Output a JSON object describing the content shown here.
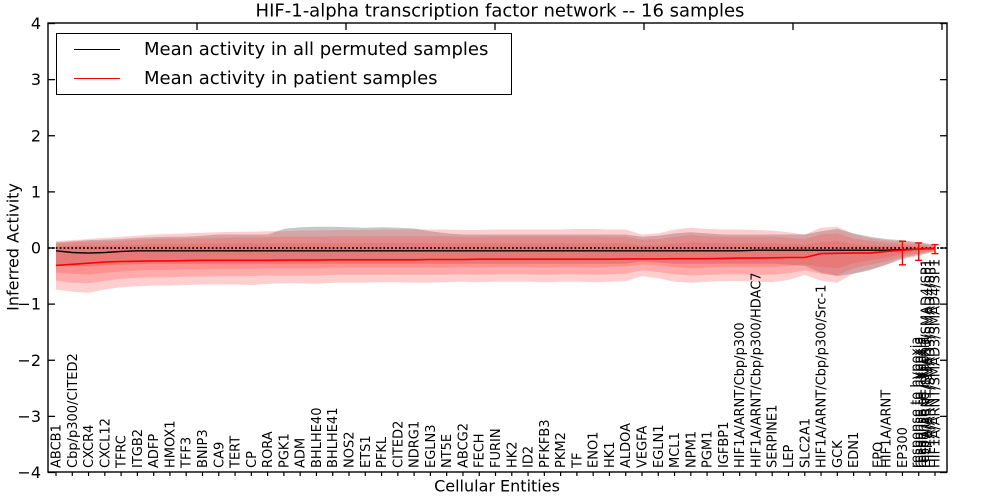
{
  "title": "HIF-1-alpha transcription factor network -- 16 samples",
  "legend": {
    "items": [
      {
        "label": "Mean activity in all permuted samples",
        "color": "#000000"
      },
      {
        "label": "Mean activity in patient samples",
        "color": "#ff0000"
      }
    ]
  },
  "axes": {
    "x_label": "Cellular Entities",
    "y_label": "Inferred Activity",
    "y_tick_labels": [
      "4",
      "3",
      "2",
      "1",
      "0",
      "−1",
      "−2",
      "−3",
      "−4"
    ],
    "y_tick_values": [
      4,
      3,
      2,
      1,
      0,
      -1,
      -2,
      -3,
      -4
    ],
    "ylim": [
      -4,
      4
    ]
  },
  "chart_data": {
    "type": "line",
    "title": "HIF-1-alpha transcription factor network -- 16 samples",
    "xlabel": "Cellular Entities",
    "ylabel": "Inferred Activity",
    "ylim": [
      -4,
      4
    ],
    "grid": false,
    "legend_position": "upper-left",
    "zero_line": {
      "style": "dotted",
      "color": "#000000",
      "y": 0
    },
    "categories": [
      "ABCB1",
      "Cbp/p300/CITED2",
      "CXCR4",
      "CXCL12",
      "TFRC",
      "ITGB2",
      "ADFP",
      "HMOX1",
      "TFF3",
      "BNIP3",
      "CA9",
      "TERT",
      "CP",
      "RORA",
      "PGK1",
      "ADM",
      "BHLHE40",
      "BHLHE41",
      "NOS2",
      "ETS1",
      "PFKL",
      "CITED2",
      "NDRG1",
      "EGLN3",
      "NT5E",
      "ABCG2",
      "FECH",
      "FURIN",
      "HK2",
      "ID2",
      "PFKFB3",
      "PKM2",
      "TF",
      "ENO1",
      "HK1",
      "ALDOA",
      "VEGFA",
      "EGLN1",
      "MCL1",
      "NPM1",
      "PGM1",
      "IGFBP1",
      "HIF1A/ARNT/Cbp/p300",
      "HIF1A/ARNT/Cbp/p300/HDAC7",
      "SERPINE1",
      "LEP",
      "SLC2A1",
      "HIF1A/ARNT/Cbp/p300/Src-1",
      "GCK",
      "EDN1",
      "EPO",
      "HIF1A/ARNT",
      "EP300",
      "response to hypoxia",
      "HIF1A/ARNT/SMAD3/SMAD4/SP1"
    ],
    "series": [
      {
        "name": "Mean activity in all permuted samples",
        "color": "#000000",
        "values": [
          -0.05,
          -0.08,
          -0.09,
          -0.08,
          -0.06,
          -0.05,
          -0.05,
          -0.05,
          -0.05,
          -0.05,
          -0.05,
          -0.05,
          -0.05,
          -0.05,
          -0.05,
          -0.05,
          -0.05,
          -0.05,
          -0.05,
          -0.05,
          -0.05,
          -0.05,
          -0.05,
          -0.05,
          -0.05,
          -0.05,
          -0.05,
          -0.05,
          -0.05,
          -0.05,
          -0.05,
          -0.05,
          -0.05,
          -0.05,
          -0.05,
          -0.05,
          -0.05,
          -0.05,
          -0.05,
          -0.05,
          -0.05,
          -0.05,
          -0.05,
          -0.04,
          -0.04,
          -0.04,
          -0.04,
          -0.04,
          -0.04,
          -0.04,
          -0.04,
          -0.04,
          -0.03,
          -0.02,
          -0.01
        ]
      },
      {
        "name": "Mean activity in patient samples",
        "color": "#ff0000",
        "values": [
          -0.31,
          -0.29,
          -0.27,
          -0.25,
          -0.24,
          -0.235,
          -0.23,
          -0.23,
          -0.225,
          -0.22,
          -0.22,
          -0.22,
          -0.22,
          -0.22,
          -0.215,
          -0.215,
          -0.215,
          -0.21,
          -0.21,
          -0.21,
          -0.21,
          -0.21,
          -0.21,
          -0.205,
          -0.205,
          -0.205,
          -0.2,
          -0.2,
          -0.2,
          -0.2,
          -0.2,
          -0.2,
          -0.2,
          -0.2,
          -0.2,
          -0.195,
          -0.195,
          -0.195,
          -0.19,
          -0.19,
          -0.19,
          -0.185,
          -0.18,
          -0.18,
          -0.175,
          -0.17,
          -0.17,
          -0.1,
          -0.095,
          -0.09,
          -0.09,
          -0.06,
          -0.04,
          -0.02,
          -0.005
        ]
      }
    ],
    "bands": [
      {
        "name": "permuted-samples-spread-band",
        "color": "rgba(130,130,130,0.45)",
        "upper": [
          0.1,
          0.12,
          0.14,
          0.15,
          0.16,
          0.18,
          0.19,
          0.2,
          0.2,
          0.22,
          0.24,
          0.24,
          0.24,
          0.24,
          0.34,
          0.37,
          0.38,
          0.38,
          0.37,
          0.36,
          0.37,
          0.36,
          0.35,
          0.3,
          0.26,
          0.24,
          0.24,
          0.24,
          0.24,
          0.24,
          0.24,
          0.24,
          0.24,
          0.24,
          0.24,
          0.24,
          0.2,
          0.22,
          0.26,
          0.28,
          0.26,
          0.24,
          0.24,
          0.24,
          0.24,
          0.24,
          0.24,
          0.3,
          0.34,
          0.26,
          0.2,
          0.16,
          0.14,
          0.1,
          0.06
        ],
        "lower": [
          -0.3,
          -0.32,
          -0.33,
          -0.31,
          -0.3,
          -0.29,
          -0.28,
          -0.28,
          -0.28,
          -0.28,
          -0.28,
          -0.28,
          -0.28,
          -0.28,
          -0.28,
          -0.28,
          -0.28,
          -0.28,
          -0.28,
          -0.28,
          -0.28,
          -0.28,
          -0.28,
          -0.28,
          -0.28,
          -0.28,
          -0.28,
          -0.28,
          -0.28,
          -0.28,
          -0.28,
          -0.28,
          -0.28,
          -0.28,
          -0.28,
          -0.28,
          -0.24,
          -0.26,
          -0.28,
          -0.28,
          -0.28,
          -0.28,
          -0.28,
          -0.28,
          -0.28,
          -0.3,
          -0.32,
          -0.44,
          -0.5,
          -0.46,
          -0.4,
          -0.3,
          -0.18,
          -0.12,
          -0.06
        ]
      },
      {
        "name": "patient-samples-outer-band",
        "color": "rgba(255,70,70,0.26)",
        "upper": [
          0.12,
          0.14,
          0.16,
          0.18,
          0.2,
          0.22,
          0.24,
          0.25,
          0.26,
          0.27,
          0.28,
          0.29,
          0.29,
          0.3,
          0.3,
          0.31,
          0.31,
          0.32,
          0.32,
          0.32,
          0.33,
          0.33,
          0.33,
          0.33,
          0.33,
          0.32,
          0.32,
          0.33,
          0.33,
          0.33,
          0.33,
          0.33,
          0.34,
          0.34,
          0.33,
          0.33,
          0.24,
          0.26,
          0.33,
          0.36,
          0.34,
          0.33,
          0.33,
          0.32,
          0.31,
          0.28,
          0.24,
          0.36,
          0.38,
          0.25,
          0.18,
          0.14,
          0.12,
          0.09,
          0.05
        ],
        "lower": [
          -0.74,
          -0.78,
          -0.8,
          -0.74,
          -0.7,
          -0.68,
          -0.67,
          -0.67,
          -0.66,
          -0.65,
          -0.65,
          -0.65,
          -0.66,
          -0.64,
          -0.63,
          -0.63,
          -0.64,
          -0.62,
          -0.62,
          -0.62,
          -0.61,
          -0.61,
          -0.62,
          -0.62,
          -0.61,
          -0.6,
          -0.61,
          -0.6,
          -0.6,
          -0.6,
          -0.61,
          -0.6,
          -0.6,
          -0.61,
          -0.6,
          -0.59,
          -0.5,
          -0.54,
          -0.6,
          -0.62,
          -0.6,
          -0.59,
          -0.59,
          -0.6,
          -0.61,
          -0.57,
          -0.48,
          -0.58,
          -0.62,
          -0.45,
          -0.38,
          -0.3,
          -0.2,
          -0.14,
          -0.06
        ]
      },
      {
        "name": "patient-samples-middle-band",
        "color": "rgba(255,70,70,0.26)",
        "upper": [
          0.08,
          0.1,
          0.11,
          0.12,
          0.13,
          0.145,
          0.16,
          0.165,
          0.17,
          0.175,
          0.18,
          0.19,
          0.19,
          0.195,
          0.2,
          0.2,
          0.2,
          0.21,
          0.21,
          0.21,
          0.21,
          0.21,
          0.21,
          0.21,
          0.21,
          0.2,
          0.2,
          0.21,
          0.21,
          0.21,
          0.21,
          0.21,
          0.21,
          0.21,
          0.2,
          0.2,
          0.15,
          0.16,
          0.2,
          0.23,
          0.21,
          0.2,
          0.2,
          0.2,
          0.2,
          0.18,
          0.16,
          0.24,
          0.26,
          0.17,
          0.13,
          0.1,
          0.08,
          0.06,
          0.03
        ],
        "lower": [
          -0.58,
          -0.62,
          -0.63,
          -0.58,
          -0.55,
          -0.53,
          -0.52,
          -0.52,
          -0.51,
          -0.51,
          -0.5,
          -0.5,
          -0.5,
          -0.49,
          -0.49,
          -0.49,
          -0.49,
          -0.48,
          -0.48,
          -0.48,
          -0.48,
          -0.48,
          -0.48,
          -0.48,
          -0.48,
          -0.47,
          -0.48,
          -0.47,
          -0.47,
          -0.47,
          -0.48,
          -0.47,
          -0.47,
          -0.48,
          -0.47,
          -0.46,
          -0.4,
          -0.43,
          -0.47,
          -0.49,
          -0.48,
          -0.47,
          -0.47,
          -0.48,
          -0.48,
          -0.45,
          -0.4,
          -0.46,
          -0.49,
          -0.36,
          -0.3,
          -0.24,
          -0.15,
          -0.1,
          -0.04
        ]
      },
      {
        "name": "patient-samples-inner-band",
        "color": "rgba(255,70,70,0.26)",
        "upper": [
          0.03,
          0.04,
          0.05,
          0.05,
          0.06,
          0.06,
          0.07,
          0.07,
          0.07,
          0.075,
          0.08,
          0.08,
          0.08,
          0.08,
          0.08,
          0.08,
          0.08,
          0.085,
          0.085,
          0.085,
          0.085,
          0.085,
          0.085,
          0.085,
          0.085,
          0.08,
          0.08,
          0.08,
          0.08,
          0.08,
          0.08,
          0.08,
          0.08,
          0.08,
          0.08,
          0.08,
          0.05,
          0.06,
          0.08,
          0.1,
          0.09,
          0.08,
          0.08,
          0.08,
          0.08,
          0.07,
          0.06,
          0.1,
          0.12,
          0.07,
          0.05,
          0.045,
          0.04,
          0.03,
          0.01
        ],
        "lower": [
          -0.44,
          -0.46,
          -0.47,
          -0.44,
          -0.42,
          -0.4,
          -0.39,
          -0.39,
          -0.38,
          -0.38,
          -0.37,
          -0.37,
          -0.37,
          -0.36,
          -0.36,
          -0.36,
          -0.36,
          -0.35,
          -0.35,
          -0.35,
          -0.35,
          -0.35,
          -0.35,
          -0.35,
          -0.35,
          -0.34,
          -0.35,
          -0.34,
          -0.34,
          -0.34,
          -0.35,
          -0.34,
          -0.34,
          -0.35,
          -0.34,
          -0.33,
          -0.29,
          -0.31,
          -0.34,
          -0.36,
          -0.35,
          -0.34,
          -0.34,
          -0.34,
          -0.34,
          -0.32,
          -0.29,
          -0.34,
          -0.36,
          -0.27,
          -0.22,
          -0.17,
          -0.11,
          -0.07,
          -0.03
        ]
      }
    ],
    "error_bars": [
      {
        "index": 52,
        "high": 0.12,
        "low": -0.3,
        "color": "#ff0000"
      },
      {
        "index": 53,
        "high": 0.09,
        "low": -0.22,
        "color": "#ff0000"
      },
      {
        "index": 54,
        "high": 0.06,
        "low": -0.1,
        "color": "#ff0000"
      }
    ]
  }
}
